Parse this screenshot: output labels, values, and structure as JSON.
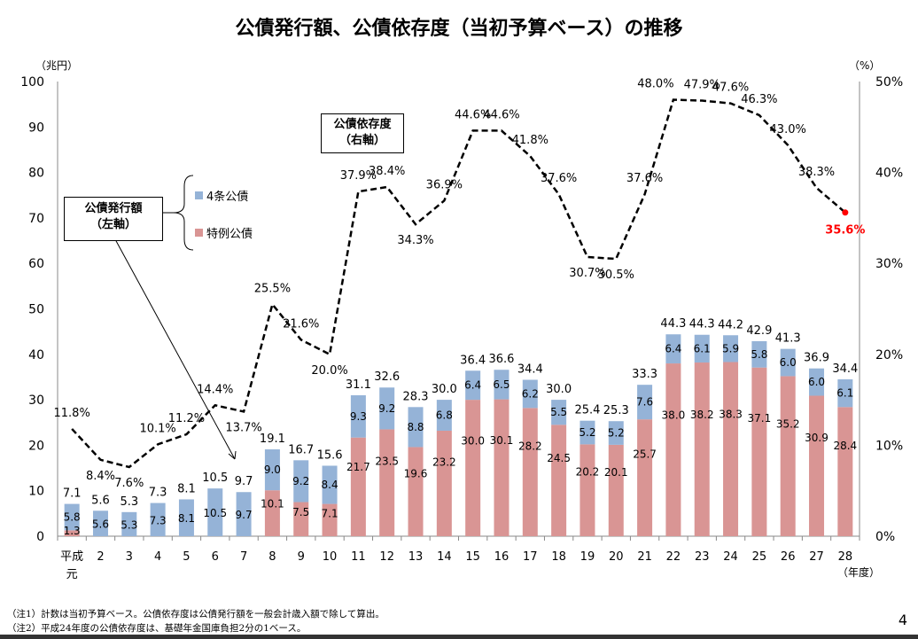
{
  "chart_data": {
    "type": "bar+line",
    "title": "公債発行額、公債依存度（当初予算ベース）の推移",
    "left_unit": "（兆円）",
    "right_unit": "（%）",
    "x_unit": "（年度）",
    "categories": [
      "平成元",
      "2",
      "3",
      "4",
      "5",
      "6",
      "7",
      "8",
      "9",
      "10",
      "11",
      "12",
      "13",
      "14",
      "15",
      "16",
      "17",
      "18",
      "19",
      "20",
      "21",
      "22",
      "23",
      "24",
      "25",
      "26",
      "27",
      "28"
    ],
    "ylim_left": [
      0,
      100
    ],
    "yticks_left": [
      0,
      10,
      20,
      30,
      40,
      50,
      60,
      70,
      80,
      90,
      100
    ],
    "ylim_right": [
      0,
      50
    ],
    "yticks_right": [
      "0%",
      "10%",
      "20%",
      "30%",
      "40%",
      "50%"
    ],
    "series": [
      {
        "name": "4条公債",
        "type": "bar-stacked",
        "color": "#95b3d7",
        "values": [
          5.8,
          5.6,
          5.3,
          7.3,
          8.1,
          10.5,
          9.7,
          9.0,
          9.2,
          8.4,
          9.3,
          9.2,
          8.8,
          6.8,
          6.4,
          6.5,
          6.2,
          5.5,
          5.2,
          5.2,
          7.6,
          6.4,
          6.1,
          5.9,
          5.8,
          6.0,
          6.0,
          6.1
        ]
      },
      {
        "name": "特例公債",
        "type": "bar-stacked",
        "color": "#d99594",
        "values": [
          1.3,
          0,
          0,
          0,
          0,
          0,
          0,
          10.1,
          7.5,
          7.1,
          21.7,
          23.5,
          19.6,
          23.2,
          30.0,
          30.1,
          28.2,
          24.5,
          20.2,
          20.1,
          25.7,
          38.0,
          38.2,
          38.3,
          37.1,
          35.2,
          30.9,
          28.4
        ]
      },
      {
        "name": "公債依存度",
        "type": "line-dashed",
        "axis": "right",
        "color": "#000000",
        "values": [
          11.8,
          8.4,
          7.6,
          10.1,
          11.2,
          14.4,
          13.7,
          25.5,
          21.6,
          20.0,
          37.9,
          38.4,
          34.3,
          36.9,
          44.6,
          44.6,
          41.8,
          37.6,
          30.7,
          30.5,
          37.6,
          48.0,
          47.9,
          47.6,
          46.3,
          43.0,
          38.3,
          35.6
        ]
      }
    ],
    "totals": [
      "7.1",
      "5.6",
      "5.3",
      "7.3",
      "8.1",
      "10.5",
      "9.7",
      "19.1",
      "16.7",
      "15.6",
      "31.1",
      "32.6",
      "28.3",
      "30.0",
      "36.4",
      "36.6",
      "34.4",
      "30.0",
      "25.4",
      "25.3",
      "33.3",
      "44.3",
      "44.3",
      "44.2",
      "42.9",
      "41.3",
      "36.9",
      "34.4"
    ],
    "highlight_color": "#ff0000",
    "annotations": {
      "issue_box": [
        "公債発行額",
        "（左軸）"
      ],
      "ratio_box": [
        "公債依存度",
        "（右軸）"
      ]
    },
    "legend": [
      "4条公債",
      "特例公債"
    ]
  },
  "notes": [
    "（注1）計数は当初予算ベース。公債依存度は公債発行額を一般会計歳入額で除して算出。",
    "（注2）平成24年度の公債依存度は、基礎年金国庫負担2分の1ベース。"
  ],
  "page_number": "4"
}
